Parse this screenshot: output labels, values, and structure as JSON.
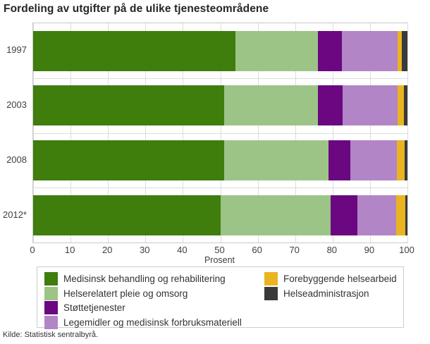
{
  "title": "Fordeling av utgifter på de ulike tjenesteområdene",
  "source": "Kilde: Statistisk sentralbyrå.",
  "chart_data": {
    "type": "bar",
    "stacked": true,
    "orientation": "horizontal",
    "title": "Fordeling av utgifter på de ulike tjenesteområdene",
    "categories": [
      "1997",
      "2003",
      "2008",
      "2012*"
    ],
    "series": [
      {
        "name": "Medisinsk behandling og rehabilitering",
        "color": "#3F7D0D",
        "values": [
          54,
          51,
          51,
          50
        ]
      },
      {
        "name": "Helserelatert pleie og omsorg",
        "color": "#9DC487",
        "values": [
          22,
          25,
          28,
          29.5
        ]
      },
      {
        "name": "Støttetjenester",
        "color": "#6A0781",
        "values": [
          6.5,
          6.6,
          5.8,
          7.2
        ]
      },
      {
        "name": "Legemidler og medisinsk forbruksmateriell",
        "color": "#B285C6",
        "values": [
          14.8,
          14.8,
          12.4,
          10.3
        ]
      },
      {
        "name": "Forebyggende helsearbeid",
        "color": "#E9B420",
        "values": [
          1.2,
          1.7,
          2.1,
          2.5
        ]
      },
      {
        "name": "Helseadministrasjon",
        "color": "#3A3A3A",
        "values": [
          1.5,
          0.9,
          0.7,
          0.5
        ]
      }
    ],
    "xlabel": "Prosent",
    "ylabel": "",
    "xlim": [
      0,
      100
    ],
    "xticks": [
      0,
      10,
      20,
      30,
      40,
      50,
      60,
      70,
      80,
      90,
      100
    ],
    "grid": true,
    "legend_position": "bottom",
    "legend_columns": [
      [
        0,
        1,
        2,
        3
      ],
      [
        4,
        5
      ]
    ],
    "colors": {
      "grid": "#dcdcdc",
      "plot_border": "#c9c9c9",
      "text": "#404040",
      "title_text": "#262626"
    }
  }
}
